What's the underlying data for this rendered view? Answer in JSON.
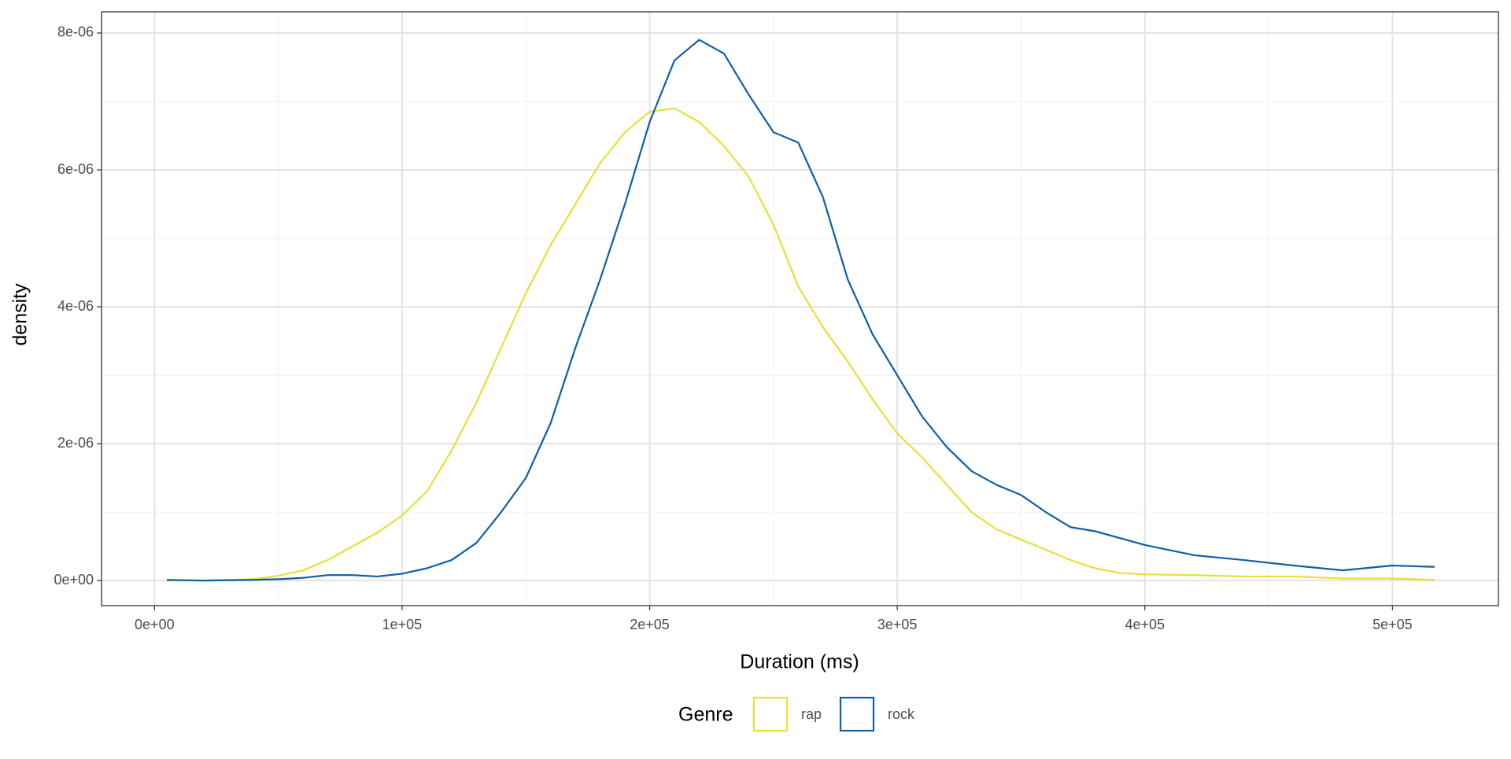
{
  "chart_data": {
    "type": "line",
    "x_label": "Duration (ms)",
    "y_label": "density",
    "legend_title": "Genre",
    "legend_position": "bottom",
    "x": [
      5000,
      20000,
      40000,
      50000,
      60000,
      70000,
      80000,
      90000,
      100000,
      110000,
      120000,
      130000,
      140000,
      150000,
      160000,
      170000,
      180000,
      190000,
      200000,
      210000,
      220000,
      230000,
      240000,
      250000,
      260000,
      270000,
      280000,
      290000,
      300000,
      310000,
      320000,
      330000,
      340000,
      350000,
      360000,
      370000,
      380000,
      390000,
      400000,
      420000,
      440000,
      460000,
      480000,
      500000,
      517000
    ],
    "series": [
      {
        "name": "rap",
        "color": "#e8df36",
        "values": [
          0,
          0,
          2e-08,
          7e-08,
          1.5e-07,
          3e-07,
          5e-07,
          7e-07,
          9.5e-07,
          1.3e-06,
          1.9e-06,
          2.6e-06,
          3.4e-06,
          4.2e-06,
          4.9e-06,
          5.5e-06,
          6.1e-06,
          6.55e-06,
          6.85e-06,
          6.9e-06,
          6.7e-06,
          6.35e-06,
          5.9e-06,
          5.2e-06,
          4.3e-06,
          3.7e-06,
          3.2e-06,
          2.65e-06,
          2.15e-06,
          1.8e-06,
          1.4e-06,
          1e-06,
          7.5e-07,
          6e-07,
          4.5e-07,
          3e-07,
          1.8e-07,
          1.1e-07,
          9e-08,
          8e-08,
          6e-08,
          6e-08,
          3e-08,
          3e-08,
          1e-08
        ]
      },
      {
        "name": "rock",
        "color": "#0f5fa6",
        "values": [
          1e-08,
          0,
          1e-08,
          2e-08,
          4e-08,
          8e-08,
          8e-08,
          6e-08,
          1e-07,
          1.8e-07,
          3e-07,
          5.5e-07,
          1e-06,
          1.5e-06,
          2.3e-06,
          3.4e-06,
          4.4e-06,
          5.5e-06,
          6.7e-06,
          7.6e-06,
          7.9e-06,
          7.7e-06,
          7.1e-06,
          6.55e-06,
          6.4e-06,
          5.6e-06,
          4.4e-06,
          3.6e-06,
          3e-06,
          2.4e-06,
          1.95e-06,
          1.6e-06,
          1.4e-06,
          1.25e-06,
          1e-06,
          7.8e-07,
          7.2e-07,
          6.2e-07,
          5.2e-07,
          3.7e-07,
          3e-07,
          2.2e-07,
          1.5e-07,
          2.2e-07,
          2e-07
        ]
      }
    ],
    "xlim": [
      -21400,
      542800
    ],
    "xticks": [
      {
        "value": 0,
        "label": "0e+00"
      },
      {
        "value": 100000,
        "label": "1e+05"
      },
      {
        "value": 200000,
        "label": "2e+05"
      },
      {
        "value": 300000,
        "label": "3e+05"
      },
      {
        "value": 400000,
        "label": "4e+05"
      },
      {
        "value": 500000,
        "label": "5e+05"
      }
    ],
    "ylim": [
      -3.66e-07,
      8.31e-06
    ],
    "yticks": [
      {
        "value": 0,
        "label": "0e+00"
      },
      {
        "value": 2e-06,
        "label": "2e-06"
      },
      {
        "value": 4e-06,
        "label": "4e-06"
      },
      {
        "value": 6e-06,
        "label": "6e-06"
      },
      {
        "value": 8e-06,
        "label": "8e-06"
      }
    ],
    "grid": true
  }
}
